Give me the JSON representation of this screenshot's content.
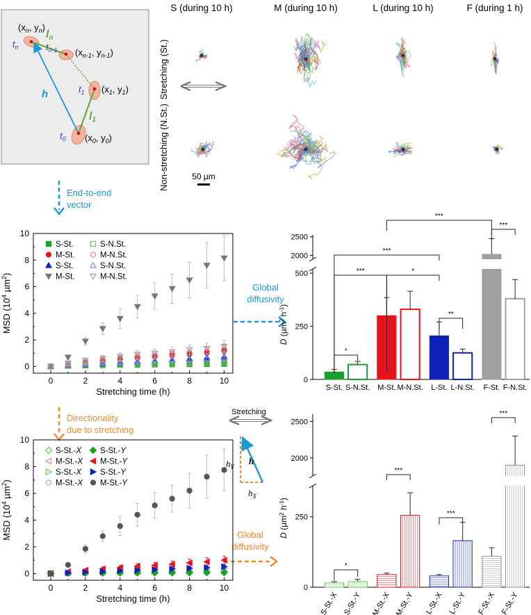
{
  "schematic": {
    "pts": [
      {
        "sub": "n",
        "t": "t",
        "tsub": "n",
        "label": "(x",
        "lsub": "n",
        "mid": ", y",
        "msub": "n",
        "end": ")"
      },
      {
        "sub": "n-1",
        "t": "t",
        "tsub": "n-1",
        "label": "(x",
        "lsub": "n-1",
        "mid": ", y",
        "msub": "n-1",
        "end": ")"
      },
      {
        "sub": "1",
        "t": "t",
        "tsub": "1",
        "label": "(x",
        "lsub": "1",
        "mid": ", y",
        "msub": "1",
        "end": ")"
      },
      {
        "sub": "0",
        "t": "t",
        "tsub": "0",
        "label": "(x",
        "lsub": "0",
        "mid": ", y",
        "msub": "0",
        "end": ")"
      }
    ],
    "h_label": "h",
    "ln_label": "l",
    "ln_sub": "n",
    "l1_label": "l",
    "l1_sub": "1"
  },
  "columns": [
    "S (during 10 h)",
    "M (during 10 h)",
    "L (during 10 h)",
    "F (during 1 h)"
  ],
  "rows": [
    "Stretching (St.)",
    "Non-stretching (N.St.)"
  ],
  "scalebar": "50 µm",
  "arrows": {
    "end_to_end": [
      "End-to-end",
      "vector"
    ],
    "global1": [
      "Global",
      "diffusivity"
    ],
    "directionality": [
      "Directionality",
      "due to stretching"
    ],
    "global2": [
      "Global",
      "diffusivity"
    ],
    "stretching": "Stretching",
    "hy": "h",
    "hy_sub": "Y",
    "hx": "h",
    "hx_sub": "X",
    "h": "h"
  },
  "colors": {
    "blue": "#1a9ad6",
    "orange": "#ee8a2e",
    "green": "#78b041",
    "red": "#e8141b",
    "navy": "#0e22b8",
    "grey": "#a0a0a0"
  },
  "chart_data": [
    {
      "type": "scatter",
      "xlabel": "Stretching time (h)",
      "ylabel": "MSD (10",
      "ylabel_sup": "4",
      "ylabel_end": " µm",
      "ylabel_sup2": "2",
      "ylabel_close": ")",
      "xlim": [
        -1,
        10.5
      ],
      "ylim": [
        -0.5,
        10
      ],
      "xticks": [
        "0",
        "2",
        "4",
        "6",
        "8",
        "10"
      ],
      "yticks": [
        "0",
        "2",
        "4",
        "6",
        "8",
        "10"
      ],
      "x": [
        0,
        1,
        2,
        3,
        4,
        5,
        6,
        7,
        8,
        9,
        10
      ],
      "legend": [
        "S-St.",
        "M-St.",
        "S-St.",
        "M-St.",
        "S-N.St.",
        "M-N.St.",
        "S-N.St.",
        "M-N.St."
      ],
      "series": [
        {
          "name": "S-St.",
          "color": "#1aa02a",
          "marker": "square-filled",
          "values": [
            0,
            0.05,
            0.08,
            0.1,
            0.12,
            0.13,
            0.15,
            0.16,
            0.17,
            0.18,
            0.2
          ],
          "err": [
            0,
            0.05,
            0.05,
            0.05,
            0.05,
            0.06,
            0.06,
            0.06,
            0.07,
            0.07,
            0.08
          ]
        },
        {
          "name": "M-St.",
          "color": "#e8141b",
          "marker": "circle-filled",
          "values": [
            0,
            0.15,
            0.3,
            0.42,
            0.55,
            0.65,
            0.75,
            0.85,
            0.95,
            1.05,
            1.2
          ],
          "err": [
            0,
            0.1,
            0.15,
            0.2,
            0.2,
            0.25,
            0.25,
            0.3,
            0.3,
            0.35,
            0.4
          ]
        },
        {
          "name": "S-St.",
          "color": "#0e22b8",
          "marker": "triangle-filled",
          "values": [
            0,
            0.08,
            0.15,
            0.22,
            0.3,
            0.37,
            0.45,
            0.52,
            0.6,
            0.67,
            0.75
          ],
          "err": [
            0,
            0.05,
            0.08,
            0.1,
            0.12,
            0.14,
            0.15,
            0.17,
            0.18,
            0.2,
            0.22
          ]
        },
        {
          "name": "M-St.",
          "color": "#777777",
          "marker": "triangle-down",
          "values": [
            0,
            0.7,
            1.9,
            2.85,
            3.6,
            4.5,
            5.3,
            5.85,
            6.5,
            7.6,
            8.15
          ],
          "err": [
            0,
            0.15,
            0.3,
            0.45,
            0.75,
            0.85,
            1.0,
            1.1,
            1.35,
            1.7,
            1.7
          ]
        },
        {
          "name": "S-N.St.",
          "color": "#5fc84a",
          "marker": "square-open",
          "values": [
            0,
            0.06,
            0.1,
            0.12,
            0.14,
            0.16,
            0.18,
            0.2,
            0.22,
            0.24,
            0.26
          ],
          "err": [
            0,
            0.05,
            0.05,
            0.05,
            0.06,
            0.06,
            0.07,
            0.07,
            0.08,
            0.08,
            0.08
          ]
        },
        {
          "name": "M-N.St.",
          "color": "#f08080",
          "marker": "circle-open",
          "values": [
            0,
            0.2,
            0.35,
            0.5,
            0.62,
            0.75,
            0.85,
            0.95,
            1.05,
            1.12,
            1.3
          ],
          "err": [
            0,
            0.12,
            0.18,
            0.2,
            0.22,
            0.25,
            0.28,
            0.3,
            0.35,
            0.38,
            0.42
          ]
        },
        {
          "name": "S-N.St.",
          "color": "#8a7df0",
          "marker": "triangle-open",
          "values": [
            0,
            0.1,
            0.18,
            0.25,
            0.32,
            0.4,
            0.45,
            0.5,
            0.55,
            0.6,
            0.65
          ],
          "err": [
            0,
            0.06,
            0.08,
            0.1,
            0.12,
            0.13,
            0.14,
            0.15,
            0.16,
            0.17,
            0.18
          ]
        },
        {
          "name": "M-N.St.",
          "color": "#999999",
          "marker": "triangle-down-open",
          "values": [
            0,
            0.25,
            0.45,
            0.6,
            0.75,
            0.9,
            1.0,
            1.1,
            1.25,
            1.35,
            1.5
          ],
          "err": [
            0,
            0.12,
            0.2,
            0.25,
            0.28,
            0.3,
            0.32,
            0.35,
            0.38,
            0.4,
            0.45
          ]
        }
      ]
    },
    {
      "type": "scatter",
      "xlabel": "Stretching time (h)",
      "ylabel": "MSD (10",
      "ylabel_sup": "4",
      "ylabel_end": " µm",
      "ylabel_sup2": "2",
      "ylabel_close": ")",
      "xlim": [
        -1,
        10.5
      ],
      "ylim": [
        -0.5,
        10
      ],
      "xticks": [
        "0",
        "2",
        "4",
        "6",
        "8",
        "10"
      ],
      "yticks": [
        "0",
        "2",
        "4",
        "6",
        "8",
        "10"
      ],
      "x": [
        0,
        1,
        2,
        3,
        4,
        5,
        6,
        7,
        8,
        9,
        10
      ],
      "legend": [
        {
          "a": "S-St.-",
          "b": "X"
        },
        {
          "a": "M-St.-",
          "b": "X"
        },
        {
          "a": "S-St.-",
          "b": "X"
        },
        {
          "a": "M-St.-",
          "b": "X"
        },
        {
          "a": "S-St.-",
          "b": "Y"
        },
        {
          "a": "M-St.-",
          "b": "Y"
        },
        {
          "a": "S-St.-",
          "b": "Y"
        },
        {
          "a": "M-St.-",
          "b": "Y"
        }
      ],
      "series": [
        {
          "name": "S-St.-X",
          "color": "#5fc84a",
          "marker": "diamond-open",
          "values": [
            0,
            0.03,
            0.05,
            0.06,
            0.07,
            0.08,
            0.08,
            0.09,
            0.1,
            0.1,
            0.11
          ],
          "err": [
            0,
            0.03,
            0.04,
            0.04,
            0.05,
            0.05,
            0.05,
            0.06,
            0.06,
            0.06,
            0.07
          ]
        },
        {
          "name": "M-St.-X",
          "color": "#f08080",
          "marker": "triangle-left-open",
          "values": [
            0,
            0.06,
            0.1,
            0.13,
            0.16,
            0.18,
            0.2,
            0.22,
            0.24,
            0.26,
            0.28
          ],
          "err": [
            0,
            0.04,
            0.06,
            0.07,
            0.08,
            0.09,
            0.1,
            0.1,
            0.11,
            0.12,
            0.13
          ]
        },
        {
          "name": "S-St.-X",
          "color": "#5fc84a",
          "marker": "triangle-right-open",
          "values": [
            0,
            0.04,
            0.07,
            0.09,
            0.11,
            0.12,
            0.14,
            0.15,
            0.16,
            0.17,
            0.18
          ],
          "err": [
            0,
            0.03,
            0.04,
            0.05,
            0.05,
            0.06,
            0.06,
            0.07,
            0.07,
            0.08,
            0.08
          ]
        },
        {
          "name": "M-St.-X",
          "color": "#aaaaaa",
          "marker": "circle-open",
          "values": [
            0,
            0.05,
            0.08,
            0.11,
            0.13,
            0.15,
            0.17,
            0.19,
            0.21,
            0.23,
            0.25
          ],
          "err": [
            0,
            0.04,
            0.05,
            0.06,
            0.07,
            0.08,
            0.08,
            0.09,
            0.1,
            0.1,
            0.11
          ]
        },
        {
          "name": "S-St.-Y",
          "color": "#1aa02a",
          "marker": "diamond-filled",
          "values": [
            0,
            0.02,
            0.03,
            0.04,
            0.05,
            0.05,
            0.06,
            0.06,
            0.06,
            0.07,
            0.07
          ],
          "err": [
            0,
            0.02,
            0.03,
            0.03,
            0.03,
            0.04,
            0.04,
            0.04,
            0.04,
            0.05,
            0.05
          ]
        },
        {
          "name": "M-St.-Y",
          "color": "#e8141b",
          "marker": "triangle-left-filled",
          "values": [
            0,
            0.15,
            0.25,
            0.35,
            0.45,
            0.55,
            0.62,
            0.7,
            0.8,
            0.88,
            1.0
          ],
          "err": [
            0,
            0.08,
            0.12,
            0.15,
            0.18,
            0.2,
            0.22,
            0.25,
            0.28,
            0.3,
            0.32
          ]
        },
        {
          "name": "S-St.-Y",
          "color": "#0e22b8",
          "marker": "triangle-right-filled",
          "values": [
            0,
            0.05,
            0.1,
            0.15,
            0.2,
            0.25,
            0.3,
            0.35,
            0.4,
            0.45,
            0.52
          ],
          "err": [
            0,
            0.04,
            0.06,
            0.08,
            0.09,
            0.1,
            0.12,
            0.13,
            0.14,
            0.15,
            0.16
          ]
        },
        {
          "name": "M-St.-Y",
          "color": "#555555",
          "marker": "circle-filled",
          "values": [
            0,
            0.65,
            1.85,
            2.8,
            3.55,
            4.4,
            5.1,
            5.6,
            6.2,
            7.25,
            7.75
          ],
          "err": [
            0,
            0.12,
            0.3,
            0.4,
            0.7,
            0.85,
            0.95,
            1.0,
            1.3,
            1.6,
            1.55
          ]
        }
      ]
    },
    {
      "type": "bar",
      "ylabel": "D",
      "ylabel_units": " (µm",
      "ylabel_sup": "2",
      "ylabel_mid": " h",
      "ylabel_sup2": "-1",
      "ylabel_close": ")",
      "categories": [
        "S-St.",
        "S-N.St.",
        "M-St.",
        "M-N.St.",
        "L-St.",
        "L-N.St.",
        "F-St.",
        "F-N.St."
      ],
      "values": [
        35,
        70,
        300,
        330,
        205,
        125,
        2030,
        380
      ],
      "err": [
        12,
        15,
        85,
        85,
        65,
        18,
        420,
        90
      ],
      "colors": [
        "#1aa02a",
        "#1aa02a",
        "#e8141b",
        "#e8141b",
        "#0e22b8",
        "#0e22b8",
        "#a0a0a0",
        "#a0a0a0"
      ],
      "filled": [
        true,
        false,
        true,
        false,
        true,
        false,
        true,
        false
      ],
      "yticks_low": [
        "0",
        "250",
        "500"
      ],
      "yticks_high": [
        "2000",
        "2500"
      ],
      "ylim_low": [
        0,
        520
      ],
      "ylim_high": [
        1900,
        2550
      ],
      "significance": [
        {
          "from": 0,
          "to": 1,
          "label": "*"
        },
        {
          "from": 0,
          "to": 2,
          "label": "***"
        },
        {
          "from": 2,
          "to": 4,
          "label": "*"
        },
        {
          "from": 0,
          "to": 4,
          "label": "***"
        },
        {
          "from": 4,
          "to": 5,
          "label": "**"
        },
        {
          "from": 6,
          "to": 7,
          "label": "***"
        },
        {
          "from": 2,
          "to": 6,
          "label": "***"
        }
      ]
    },
    {
      "type": "bar",
      "ylabel": "D",
      "ylabel_units": " (µm",
      "ylabel_sup": "2",
      "ylabel_mid": " h",
      "ylabel_sup2": "-1",
      "ylabel_close": ")",
      "categories": [
        "S-St.-X",
        "S-St.-Y",
        "M-St.-X",
        "M-St.-Y",
        "L-St.-X",
        "L-St.-Y",
        "F-St.-X",
        "F-St.-Y"
      ],
      "values": [
        15,
        20,
        45,
        255,
        40,
        165,
        110,
        1900
      ],
      "err": [
        5,
        8,
        5,
        80,
        5,
        65,
        30,
        400
      ],
      "colors": [
        "#5fc84a",
        "#5fc84a",
        "#e8141b",
        "#e8141b",
        "#0e22b8",
        "#0e22b8",
        "#909090",
        "#909090"
      ],
      "yticks_low": [
        "0",
        "250"
      ],
      "yticks_high": [
        "2000",
        "2500"
      ],
      "ylim_low": [
        0,
        360
      ],
      "ylim_high": [
        1750,
        2600
      ],
      "significance": [
        {
          "from": 0,
          "to": 1,
          "label": "*"
        },
        {
          "from": 2,
          "to": 3,
          "label": "***"
        },
        {
          "from": 4,
          "to": 5,
          "label": "***"
        },
        {
          "from": 6,
          "to": 7,
          "label": "***"
        }
      ]
    }
  ]
}
